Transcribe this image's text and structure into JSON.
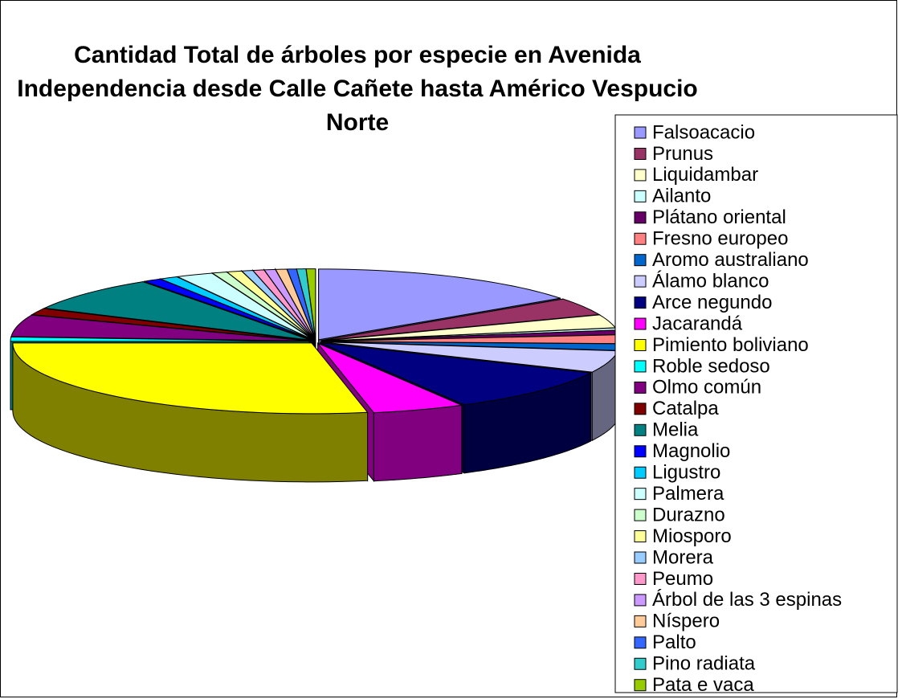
{
  "chart_data": {
    "type": "pie3d",
    "title": "Cantidad Total de árboles por especie en Avenida Independencia desde Calle Cañete hasta Américo Vespucio Norte",
    "categories": [
      "Falsoacacio",
      "Prunus",
      "Liquidambar",
      "Ailanto",
      "Plátano oriental",
      "Fresno europeo",
      "Aromo australiano",
      "Álamo blanco",
      "Arce negundo",
      "Jacarandá",
      "Pimiento boliviano",
      "Roble sedoso",
      "Olmo común",
      "Catalpa",
      "Melia",
      "Magnolio",
      "Ligustro",
      "Palmera",
      "Durazno",
      "Miosporo",
      "Morera",
      "Peumo",
      "Árbol de las 3 espinas",
      "Níspero",
      "Palto",
      "Pino radiata",
      "Pata e vaca"
    ],
    "values": [
      15,
      4,
      3,
      0.5,
      1,
      2,
      1.5,
      5,
      10,
      5,
      28,
      1,
      5,
      1.5,
      8,
      1,
      1,
      2,
      0.8,
      0.8,
      0.6,
      0.6,
      0.6,
      0.6,
      0.5,
      0.5,
      0.5
    ],
    "colors": [
      "#9999FF",
      "#993366",
      "#FFFFCC",
      "#CCFFFF",
      "#660066",
      "#FF8080",
      "#0066CC",
      "#CCCCFF",
      "#000080",
      "#FF00FF",
      "#FFFF00",
      "#00FFFF",
      "#800080",
      "#800000",
      "#008080",
      "#0000FF",
      "#00CCFF",
      "#CCFFFF",
      "#CCFFCC",
      "#FFFF99",
      "#99CCFF",
      "#FF99CC",
      "#CC99FF",
      "#FFCC99",
      "#3366FF",
      "#33CCCC",
      "#99CC00"
    ],
    "legend": "right"
  }
}
